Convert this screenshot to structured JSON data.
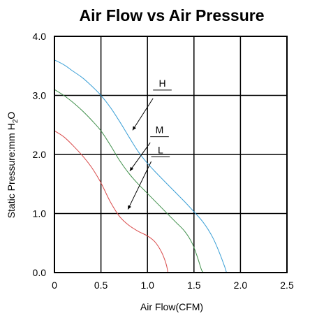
{
  "chart_data": {
    "type": "line",
    "title": "Air Flow vs Air Pressure",
    "xlabel": "Air Flow(CFM)",
    "ylabel_main": "Static Pressure:mm H",
    "ylabel_sub": "2",
    "ylabel_tail": "O",
    "xlim": [
      0,
      2.5
    ],
    "ylim": [
      0,
      4.0
    ],
    "x_ticks": [
      0,
      0.5,
      1.0,
      1.5,
      2.0,
      2.5
    ],
    "x_tick_labels": [
      "0",
      "0.5",
      "1.0",
      "1.5",
      "2.0",
      "2.5"
    ],
    "y_ticks": [
      0,
      1.0,
      2.0,
      3.0,
      4.0
    ],
    "y_tick_labels": [
      "0.0",
      "1.0",
      "2.0",
      "3.0",
      "4.0"
    ],
    "grid": true,
    "series": [
      {
        "name": "H",
        "color": "#3a9fd6",
        "points": [
          [
            0,
            3.6
          ],
          [
            0.1,
            3.52
          ],
          [
            0.2,
            3.41
          ],
          [
            0.3,
            3.3
          ],
          [
            0.4,
            3.16
          ],
          [
            0.5,
            3.0
          ],
          [
            0.6,
            2.8
          ],
          [
            0.7,
            2.56
          ],
          [
            0.8,
            2.3
          ],
          [
            0.9,
            2.05
          ],
          [
            1.0,
            1.85
          ],
          [
            1.1,
            1.68
          ],
          [
            1.2,
            1.52
          ],
          [
            1.3,
            1.36
          ],
          [
            1.4,
            1.2
          ],
          [
            1.5,
            1.03
          ],
          [
            1.6,
            0.85
          ],
          [
            1.7,
            0.6
          ],
          [
            1.77,
            0.35
          ],
          [
            1.83,
            0.1
          ],
          [
            1.85,
            0.0
          ]
        ]
      },
      {
        "name": "M",
        "color": "#3f8f4a",
        "points": [
          [
            0,
            3.1
          ],
          [
            0.1,
            3.0
          ],
          [
            0.2,
            2.88
          ],
          [
            0.3,
            2.74
          ],
          [
            0.4,
            2.58
          ],
          [
            0.5,
            2.4
          ],
          [
            0.6,
            2.16
          ],
          [
            0.7,
            1.9
          ],
          [
            0.8,
            1.68
          ],
          [
            0.9,
            1.5
          ],
          [
            1.0,
            1.34
          ],
          [
            1.1,
            1.18
          ],
          [
            1.2,
            1.02
          ],
          [
            1.3,
            0.86
          ],
          [
            1.4,
            0.7
          ],
          [
            1.48,
            0.5
          ],
          [
            1.54,
            0.25
          ],
          [
            1.58,
            0.05
          ],
          [
            1.6,
            0.0
          ]
        ]
      },
      {
        "name": "L",
        "color": "#d94a4a",
        "points": [
          [
            0,
            2.4
          ],
          [
            0.1,
            2.3
          ],
          [
            0.2,
            2.15
          ],
          [
            0.3,
            1.98
          ],
          [
            0.4,
            1.78
          ],
          [
            0.5,
            1.52
          ],
          [
            0.6,
            1.2
          ],
          [
            0.7,
            0.95
          ],
          [
            0.8,
            0.8
          ],
          [
            0.9,
            0.7
          ],
          [
            1.0,
            0.62
          ],
          [
            1.08,
            0.52
          ],
          [
            1.15,
            0.35
          ],
          [
            1.2,
            0.15
          ],
          [
            1.22,
            0.0
          ]
        ]
      }
    ],
    "annotations": [
      {
        "label": "H",
        "label_x": 1.16,
        "label_y": 3.15,
        "underline": [
          1.06,
          1.26
        ],
        "arrow_from": [
          1.06,
          2.95
        ],
        "arrow_to": [
          0.84,
          2.41
        ]
      },
      {
        "label": "M",
        "label_x": 1.13,
        "label_y": 2.36,
        "underline": [
          1.03,
          1.23
        ],
        "arrow_from": [
          1.03,
          2.2
        ],
        "arrow_to": [
          0.81,
          1.72
        ]
      },
      {
        "label": "L",
        "label_x": 1.14,
        "label_y": 2.02,
        "underline": [
          1.04,
          1.24
        ],
        "arrow_from": [
          1.04,
          1.88
        ],
        "arrow_to": [
          0.79,
          1.07
        ]
      }
    ]
  }
}
